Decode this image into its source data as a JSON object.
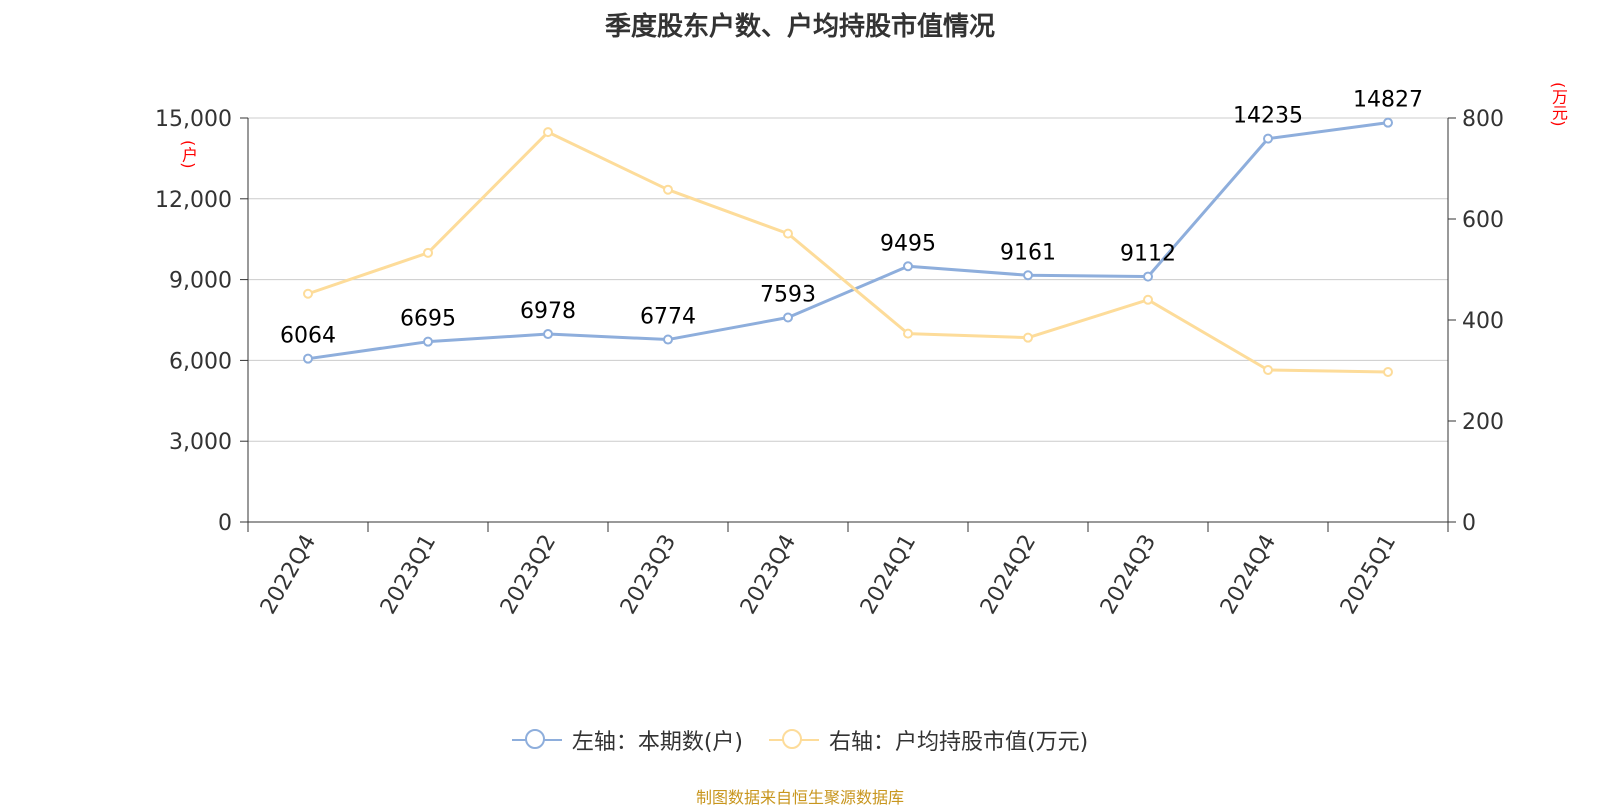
{
  "page": {
    "title": "季度股东户数、户均持股市值情况",
    "source": "制图数据来自恒生聚源数据库"
  },
  "chart_data": {
    "type": "line",
    "title": "季度股东户数、户均持股市值情况",
    "categories": [
      "2022Q4",
      "2023Q1",
      "2023Q2",
      "2023Q3",
      "2023Q4",
      "2024Q1",
      "2024Q2",
      "2024Q3",
      "2024Q4",
      "2025Q1"
    ],
    "y_left": {
      "unit": "(户)",
      "ylim": [
        0,
        15000
      ],
      "ticks": [
        0,
        3000,
        6000,
        9000,
        12000,
        15000
      ],
      "tick_labels": [
        "0",
        "3,000",
        "6,000",
        "9,000",
        "12,000",
        "15,000"
      ]
    },
    "y_right": {
      "unit": "(万元)",
      "ylim": [
        0,
        800
      ],
      "ticks": [
        0,
        200,
        400,
        600,
        800
      ],
      "tick_labels": [
        "0",
        "200",
        "400",
        "600",
        "800"
      ]
    },
    "grid": true,
    "legend_position": "bottom-center",
    "series": [
      {
        "name": "左轴：本期数(户)",
        "axis": "left",
        "color": "#8eaedc",
        "values": [
          6064,
          6695,
          6978,
          6774,
          7593,
          9495,
          9161,
          9112,
          14235,
          14827
        ],
        "data_labels": [
          "6064",
          "6695",
          "6978",
          "6774",
          "7593",
          "9495",
          "9161",
          "9112",
          "14235",
          "14827"
        ]
      },
      {
        "name": "右轴：户均持股市值(万元)",
        "axis": "right",
        "color": "#fddc9a",
        "values": [
          452,
          533,
          772,
          658,
          571,
          373,
          365,
          440,
          301,
          297
        ]
      }
    ]
  }
}
